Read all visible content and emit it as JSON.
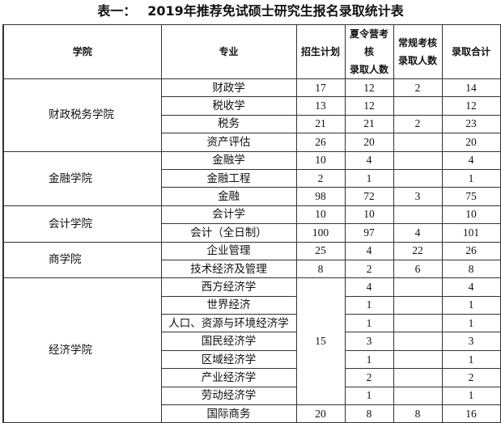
{
  "title": {
    "prefix": "表一：",
    "text": "2019年推荐免试硕士研究生报名录取统计表"
  },
  "headers": {
    "college": "学院",
    "major": "专业",
    "plan": "招生计划",
    "summer": [
      "夏令营考核",
      "录取人数"
    ],
    "regular": [
      "常规考核",
      "录取人数"
    ],
    "total": "录取合计"
  },
  "groups": [
    {
      "college": "财政税务学院",
      "rows": [
        {
          "major": "财政学",
          "plan": "17",
          "summer": "12",
          "regular": "2",
          "total": "14"
        },
        {
          "major": "税收学",
          "plan": "13",
          "summer": "12",
          "regular": "",
          "total": "12"
        },
        {
          "major": "税务",
          "plan": "21",
          "summer": "21",
          "regular": "2",
          "total": "23"
        },
        {
          "major": "资产评估",
          "plan": "26",
          "summer": "20",
          "regular": "",
          "total": "20"
        }
      ]
    },
    {
      "college": "金融学院",
      "rows": [
        {
          "major": "金融学",
          "plan": "10",
          "summer": "4",
          "regular": "",
          "total": "4"
        },
        {
          "major": "金融工程",
          "plan": "2",
          "summer": "1",
          "regular": "",
          "total": "1"
        },
        {
          "major": "金融",
          "plan": "98",
          "summer": "72",
          "regular": "3",
          "total": "75"
        }
      ]
    },
    {
      "college": "会计学院",
      "rows": [
        {
          "major": "会计学",
          "plan": "10",
          "summer": "10",
          "regular": "",
          "total": "10"
        },
        {
          "major": "会计（全日制）",
          "plan": "100",
          "summer": "97",
          "regular": "4",
          "total": "101"
        }
      ]
    },
    {
      "college": "商学院",
      "rows": [
        {
          "major": "企业管理",
          "plan": "25",
          "summer": "4",
          "regular": "22",
          "total": "26"
        },
        {
          "major": "技术经济及管理",
          "plan": "8",
          "summer": "2",
          "regular": "6",
          "total": "8"
        }
      ]
    },
    {
      "college": "经济学院",
      "shared_plan": "15",
      "rows": [
        {
          "major": "西方经济学",
          "summer": "4",
          "regular": "",
          "total": "4"
        },
        {
          "major": "世界经济",
          "summer": "1",
          "regular": "",
          "total": "1"
        },
        {
          "major": "人口、资源与环境经济学",
          "summer": "1",
          "regular": "",
          "total": "1"
        },
        {
          "major": "国民经济学",
          "summer": "3",
          "regular": "",
          "total": "3"
        },
        {
          "major": "区域经济学",
          "summer": "1",
          "regular": "",
          "total": "1"
        },
        {
          "major": "产业经济学",
          "summer": "2",
          "regular": "",
          "total": "2"
        },
        {
          "major": "劳动经济学",
          "summer": "1",
          "regular": "",
          "total": "1"
        },
        {
          "major": "国际商务",
          "plan": "20",
          "summer": "8",
          "regular": "8",
          "total": "16"
        }
      ]
    }
  ]
}
